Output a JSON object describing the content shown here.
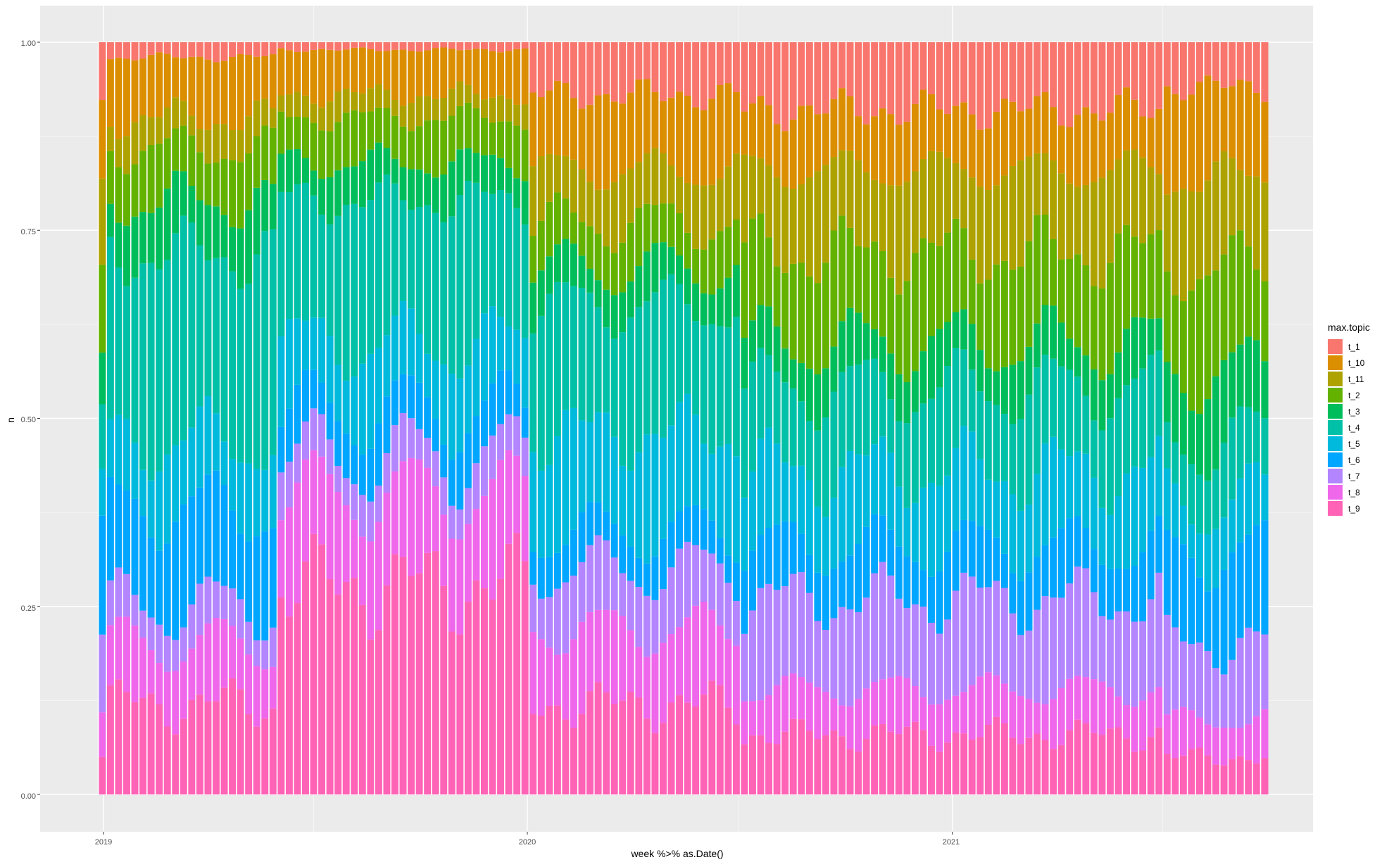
{
  "chart_data": {
    "type": "bar",
    "stacked": true,
    "title": "",
    "xlabel": "week %>% as.Date()",
    "ylabel": "n",
    "ylim": [
      0,
      1
    ],
    "y_ticks": [
      0.0,
      0.25,
      0.5,
      0.75,
      1.0
    ],
    "y_tick_labels": [
      "0.00",
      "0.25",
      "0.50",
      "0.75",
      "1.00"
    ],
    "x_tick_labels": [
      "2019",
      "2020",
      "2021"
    ],
    "grid": true,
    "legend_position": "right",
    "legend_title": "max.topic",
    "colors": {
      "background": "#ebebeb",
      "gridline": "#ffffff",
      "bar_outline": "#ffffff"
    },
    "series": [
      {
        "name": "t_1",
        "color": "#f8766d"
      },
      {
        "name": "t_10",
        "color": "#db8e00"
      },
      {
        "name": "t_11",
        "color": "#aea200"
      },
      {
        "name": "t_2",
        "color": "#64b200"
      },
      {
        "name": "t_3",
        "color": "#00bd5c"
      },
      {
        "name": "t_4",
        "color": "#00c1a7"
      },
      {
        "name": "t_5",
        "color": "#00bade"
      },
      {
        "name": "t_6",
        "color": "#00a6ff"
      },
      {
        "name": "t_7",
        "color": "#b385ff"
      },
      {
        "name": "t_8",
        "color": "#ef67eb"
      },
      {
        "name": "t_9",
        "color": "#ff63b6"
      }
    ],
    "bar_periods": [
      {
        "from": "2019-01-01",
        "to": "2019-05-31",
        "shares": {
          "t_9": 0.12,
          "t_8": 0.08,
          "t_7": 0.05,
          "t_6": 0.13,
          "t_5": 0.09,
          "t_4": 0.25,
          "t_3": 0.07,
          "t_2": 0.07,
          "t_11": 0.04,
          "t_10": 0.08,
          "t_1": 0.02
        }
      },
      {
        "from": "2019-06-01",
        "to": "2019-12-31",
        "shares": {
          "t_9": 0.28,
          "t_8": 0.12,
          "t_7": 0.05,
          "t_6": 0.06,
          "t_5": 0.09,
          "t_4": 0.19,
          "t_3": 0.05,
          "t_2": 0.06,
          "t_11": 0.03,
          "t_10": 0.06,
          "t_1": 0.01
        }
      },
      {
        "from": "2020-01-01",
        "to": "2020-06-30",
        "shares": {
          "t_9": 0.12,
          "t_8": 0.1,
          "t_7": 0.08,
          "t_6": 0.05,
          "t_5": 0.13,
          "t_4": 0.17,
          "t_3": 0.05,
          "t_2": 0.06,
          "t_11": 0.07,
          "t_10": 0.1,
          "t_1": 0.07
        }
      },
      {
        "from": "2020-07-01",
        "to": "2021-06-30",
        "shares": {
          "t_9": 0.08,
          "t_8": 0.06,
          "t_7": 0.12,
          "t_6": 0.07,
          "t_5": 0.1,
          "t_4": 0.11,
          "t_3": 0.06,
          "t_2": 0.12,
          "t_11": 0.11,
          "t_10": 0.08,
          "t_1": 0.09
        }
      },
      {
        "from": "2021-07-01",
        "to": "2021-09-30",
        "shares": {
          "t_9": 0.05,
          "t_8": 0.05,
          "t_7": 0.1,
          "t_6": 0.12,
          "t_5": 0.07,
          "t_4": 0.08,
          "t_3": 0.09,
          "t_2": 0.14,
          "t_11": 0.12,
          "t_10": 0.12,
          "t_1": 0.06
        }
      }
    ]
  }
}
